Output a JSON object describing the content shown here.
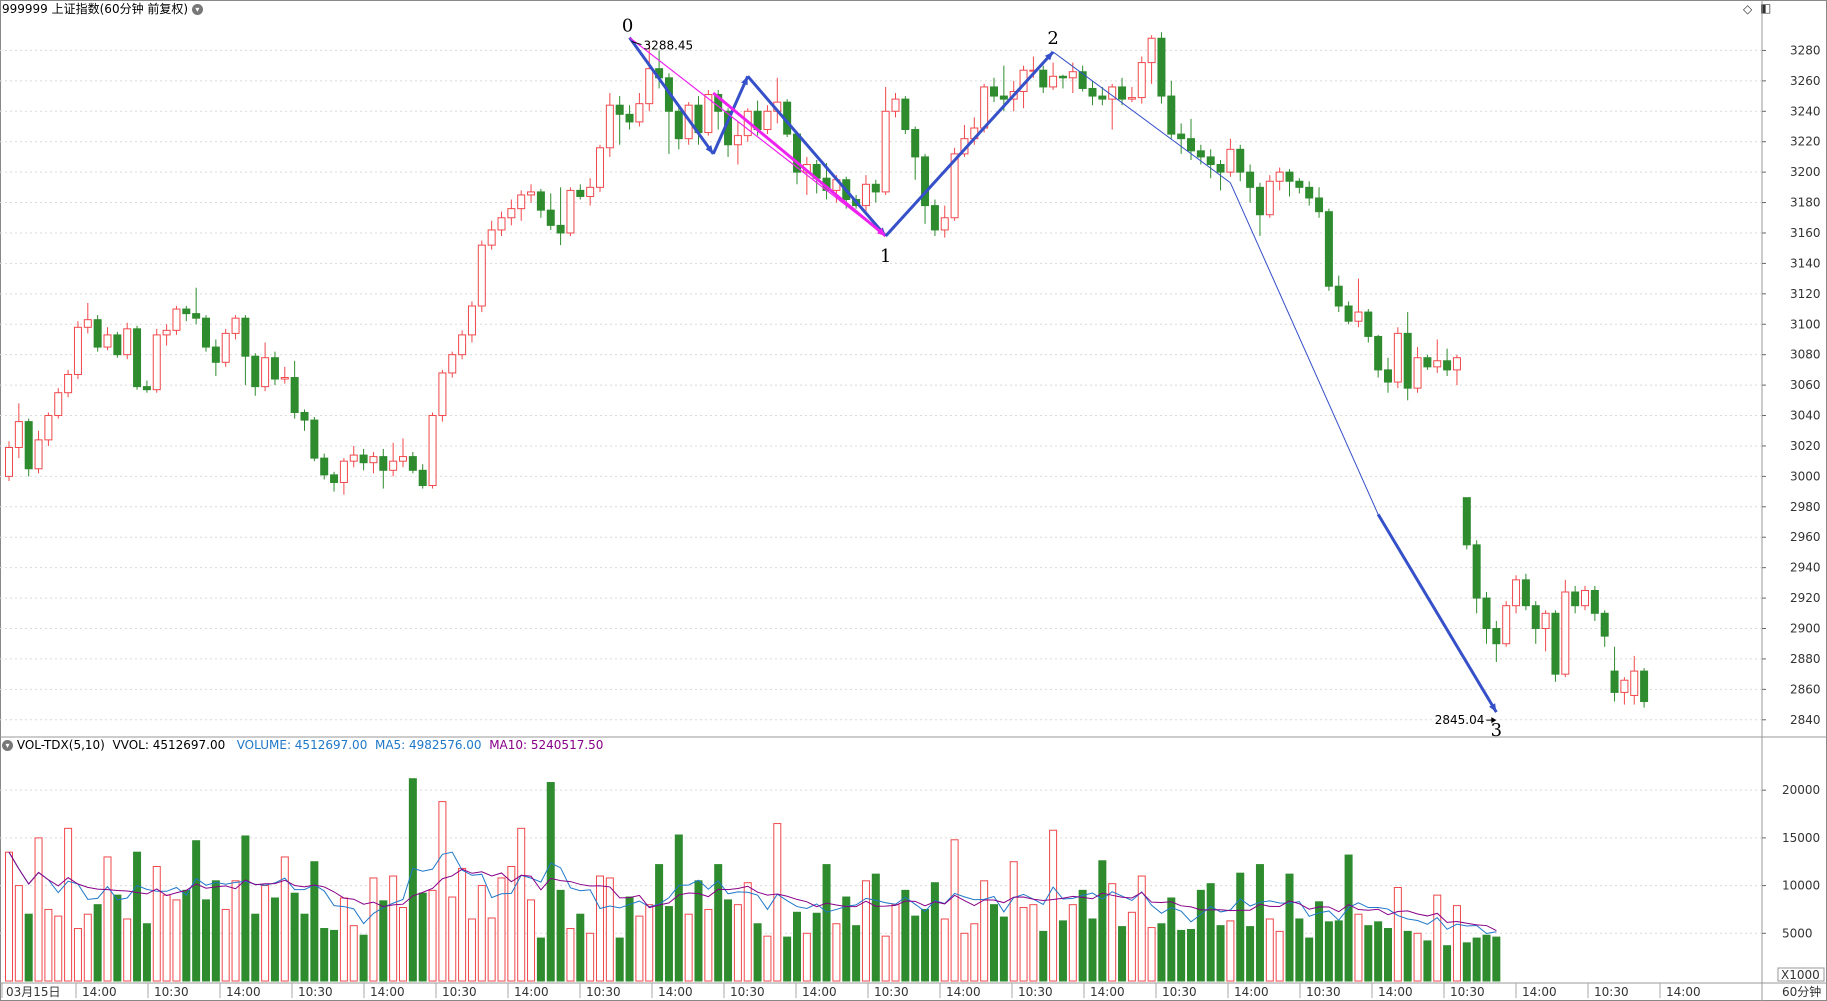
{
  "header": {
    "title": "999999 上证指数(60分钟 前复权)",
    "dropdown_icon": "chevron-down-icon",
    "tools": [
      "diamond-icon",
      "panel-icon"
    ]
  },
  "vol_header": {
    "indicator": "VOL-TDX(5,10)",
    "vvol": "VVOL: 4512697.00",
    "volume": "VOLUME: 4512697.00",
    "ma5": "MA5: 4982576.00",
    "ma10": "MA10: 5240517.50"
  },
  "colors": {
    "up": "#f0484c",
    "down": "#2e8b2e",
    "wave_blue": "#3550c8",
    "wave_magenta": "#ee22ee",
    "vol_label": "#1f78c8",
    "ma10": "#880088"
  },
  "footer": {
    "period_label": "60分钟",
    "multiplier": "X1000",
    "x_labels": [
      "03月15日",
      "14:00",
      "10:30",
      "14:00",
      "10:30",
      "14:00",
      "10:30",
      "14:00",
      "10:30",
      "14:00",
      "10:30",
      "14:00",
      "10:30",
      "14:00",
      "10:30",
      "14:00",
      "10:30",
      "14:00",
      "10:30",
      "14:00",
      "10:30",
      "14:00",
      "10:30",
      "14:00"
    ]
  },
  "chart_data": [
    {
      "type": "candlestick",
      "ylim": [
        2830,
        3300
      ],
      "yticks": [
        2840,
        2860,
        2880,
        2900,
        2920,
        2940,
        2960,
        2980,
        3000,
        3020,
        3040,
        3060,
        3080,
        3100,
        3120,
        3140,
        3160,
        3180,
        3200,
        3220,
        3240,
        3260,
        3280
      ],
      "grid": true,
      "grid_style": "dotted",
      "candles": [
        [
          3000,
          3019,
          2997,
          3023
        ],
        [
          3019,
          3036,
          3012,
          3048
        ],
        [
          3036,
          3005,
          3000,
          3038
        ],
        [
          3005,
          3024,
          3002,
          3030
        ],
        [
          3024,
          3040,
          3020,
          3042
        ],
        [
          3040,
          3055,
          3038,
          3058
        ],
        [
          3055,
          3067,
          3052,
          3070
        ],
        [
          3067,
          3098,
          3064,
          3102
        ],
        [
          3098,
          3103,
          3094,
          3114
        ],
        [
          3103,
          3085,
          3082,
          3106
        ],
        [
          3085,
          3093,
          3083,
          3098
        ],
        [
          3093,
          3080,
          3078,
          3095
        ],
        [
          3080,
          3097,
          3077,
          3101
        ],
        [
          3097,
          3059,
          3057,
          3099
        ],
        [
          3059,
          3057,
          3055,
          3063
        ],
        [
          3057,
          3093,
          3055,
          3097
        ],
        [
          3093,
          3096,
          3086,
          3100
        ],
        [
          3096,
          3110,
          3093,
          3112
        ],
        [
          3110,
          3107,
          3102,
          3112
        ],
        [
          3107,
          3104,
          3100,
          3124
        ],
        [
          3104,
          3085,
          3082,
          3106
        ],
        [
          3085,
          3075,
          3066,
          3090
        ],
        [
          3075,
          3094,
          3072,
          3097
        ],
        [
          3094,
          3104,
          3090,
          3106
        ],
        [
          3104,
          3079,
          3060,
          3106
        ],
        [
          3079,
          3059,
          3053,
          3081
        ],
        [
          3059,
          3078,
          3056,
          3088
        ],
        [
          3078,
          3064,
          3060,
          3082
        ],
        [
          3064,
          3065,
          3061,
          3072
        ],
        [
          3065,
          3042,
          3038,
          3076
        ],
        [
          3042,
          3037,
          3030,
          3044
        ],
        [
          3037,
          3012,
          3010,
          3039
        ],
        [
          3012,
          3001,
          2998,
          3015
        ],
        [
          3001,
          2996,
          2990,
          3003
        ],
        [
          2996,
          3010,
          2988,
          3012
        ],
        [
          3010,
          3014,
          3006,
          3020
        ],
        [
          3014,
          3009,
          3004,
          3018
        ],
        [
          3009,
          3013,
          3002,
          3016
        ],
        [
          3013,
          3004,
          2992,
          3018
        ],
        [
          3004,
          3010,
          3000,
          3022
        ],
        [
          3010,
          3013,
          3006,
          3025
        ],
        [
          3013,
          3004,
          3002,
          3016
        ],
        [
          3004,
          2994,
          2992,
          3008
        ],
        [
          2994,
          3040,
          2992,
          3042
        ],
        [
          3040,
          3068,
          3036,
          3070
        ],
        [
          3068,
          3080,
          3065,
          3082
        ],
        [
          3080,
          3093,
          3077,
          3096
        ],
        [
          3093,
          3112,
          3088,
          3115
        ],
        [
          3112,
          3152,
          3108,
          3155
        ],
        [
          3152,
          3162,
          3149,
          3168
        ],
        [
          3162,
          3170,
          3158,
          3174
        ],
        [
          3170,
          3176,
          3165,
          3182
        ],
        [
          3176,
          3185,
          3168,
          3188
        ],
        [
          3185,
          3187,
          3180,
          3192
        ],
        [
          3187,
          3175,
          3170,
          3189
        ],
        [
          3175,
          3165,
          3162,
          3186
        ],
        [
          3165,
          3160,
          3152,
          3190
        ],
        [
          3160,
          3188,
          3158,
          3190
        ],
        [
          3188,
          3184,
          3182,
          3192
        ],
        [
          3184,
          3190,
          3178,
          3196
        ],
        [
          3190,
          3216,
          3187,
          3218
        ],
        [
          3216,
          3244,
          3210,
          3252
        ],
        [
          3244,
          3238,
          3218,
          3250
        ],
        [
          3238,
          3233,
          3228,
          3244
        ],
        [
          3233,
          3245,
          3230,
          3252
        ],
        [
          3245,
          3268,
          3240,
          3285
        ],
        [
          3268,
          3262,
          3255,
          3280
        ],
        [
          3262,
          3240,
          3212,
          3265
        ],
        [
          3240,
          3222,
          3215,
          3243
        ],
        [
          3222,
          3244,
          3218,
          3246
        ],
        [
          3244,
          3226,
          3218,
          3250
        ],
        [
          3226,
          3251,
          3224,
          3254
        ],
        [
          3251,
          3240,
          3228,
          3254
        ],
        [
          3240,
          3218,
          3210,
          3242
        ],
        [
          3218,
          3224,
          3205,
          3233
        ],
        [
          3224,
          3240,
          3220,
          3242
        ],
        [
          3240,
          3228,
          3224,
          3247
        ],
        [
          3228,
          3240,
          3225,
          3244
        ],
        [
          3240,
          3246,
          3232,
          3262
        ],
        [
          3246,
          3225,
          3223,
          3248
        ],
        [
          3225,
          3200,
          3192,
          3226
        ],
        [
          3200,
          3205,
          3185,
          3210
        ],
        [
          3205,
          3196,
          3186,
          3208
        ],
        [
          3196,
          3188,
          3182,
          3206
        ],
        [
          3188,
          3195,
          3180,
          3198
        ],
        [
          3195,
          3182,
          3176,
          3197
        ],
        [
          3182,
          3178,
          3176,
          3185
        ],
        [
          3178,
          3192,
          3174,
          3198
        ],
        [
          3192,
          3187,
          3180,
          3195
        ],
        [
          3187,
          3240,
          3185,
          3256
        ],
        [
          3240,
          3248,
          3236,
          3252
        ],
        [
          3248,
          3228,
          3225,
          3250
        ],
        [
          3228,
          3210,
          3195,
          3230
        ],
        [
          3210,
          3178,
          3166,
          3212
        ],
        [
          3178,
          3162,
          3158,
          3182
        ],
        [
          3162,
          3170,
          3157,
          3178
        ],
        [
          3170,
          3212,
          3168,
          3216
        ],
        [
          3212,
          3222,
          3210,
          3231
        ],
        [
          3222,
          3229,
          3218,
          3236
        ],
        [
          3229,
          3256,
          3226,
          3258
        ],
        [
          3256,
          3250,
          3246,
          3262
        ],
        [
          3250,
          3248,
          3240,
          3270
        ],
        [
          3248,
          3253,
          3240,
          3260
        ],
        [
          3253,
          3267,
          3242,
          3270
        ],
        [
          3267,
          3267,
          3262,
          3276
        ],
        [
          3267,
          3256,
          3252,
          3270
        ],
        [
          3256,
          3263,
          3254,
          3272
        ],
        [
          3263,
          3262,
          3255,
          3264
        ],
        [
          3262,
          3266,
          3252,
          3272
        ],
        [
          3266,
          3255,
          3253,
          3270
        ],
        [
          3255,
          3250,
          3244,
          3260
        ],
        [
          3250,
          3248,
          3244,
          3256
        ],
        [
          3248,
          3256,
          3228,
          3258
        ],
        [
          3256,
          3248,
          3244,
          3262
        ],
        [
          3248,
          3249,
          3246,
          3256
        ],
        [
          3249,
          3272,
          3245,
          3276
        ],
        [
          3272,
          3288,
          3258,
          3290
        ],
        [
          3288,
          3250,
          3245,
          3292
        ],
        [
          3250,
          3225,
          3222,
          3260
        ],
        [
          3225,
          3222,
          3212,
          3232
        ],
        [
          3222,
          3214,
          3208,
          3235
        ],
        [
          3214,
          3210,
          3205,
          3218
        ],
        [
          3210,
          3205,
          3196,
          3215
        ],
        [
          3205,
          3200,
          3188,
          3208
        ],
        [
          3200,
          3215,
          3197,
          3222
        ],
        [
          3215,
          3200,
          3194,
          3218
        ],
        [
          3200,
          3190,
          3180,
          3205
        ],
        [
          3190,
          3172,
          3158,
          3193
        ],
        [
          3172,
          3194,
          3170,
          3198
        ],
        [
          3194,
          3200,
          3188,
          3203
        ],
        [
          3200,
          3194,
          3184,
          3202
        ],
        [
          3194,
          3190,
          3186,
          3196
        ],
        [
          3190,
          3183,
          3178,
          3194
        ],
        [
          3183,
          3174,
          3170,
          3190
        ],
        [
          3174,
          3125,
          3122,
          3176
        ],
        [
          3125,
          3112,
          3108,
          3132
        ],
        [
          3112,
          3102,
          3100,
          3115
        ],
        [
          3102,
          3108,
          3098,
          3130
        ],
        [
          3108,
          3092,
          3088,
          3110
        ],
        [
          3092,
          3070,
          3065,
          3093
        ],
        [
          3070,
          3062,
          3055,
          3078
        ],
        [
          3062,
          3094,
          3058,
          3098
        ],
        [
          3094,
          3058,
          3050,
          3108
        ],
        [
          3058,
          3078,
          3055,
          3085
        ],
        [
          3078,
          3072,
          3070,
          3080
        ],
        [
          3072,
          3076,
          3068,
          3090
        ],
        [
          3076,
          3070,
          3066,
          3084
        ],
        [
          3070,
          3078,
          3060,
          3080
        ],
        [
          2986,
          2955,
          2952,
          2986
        ],
        [
          2955,
          2920,
          2910,
          2958
        ],
        [
          2920,
          2900,
          2890,
          2924
        ],
        [
          2900,
          2890,
          2878,
          2905
        ],
        [
          2890,
          2915,
          2888,
          2918
        ],
        [
          2915,
          2932,
          2910,
          2935
        ],
        [
          2932,
          2915,
          2912,
          2936
        ],
        [
          2915,
          2900,
          2890,
          2918
        ],
        [
          2900,
          2910,
          2885,
          2912
        ],
        [
          2910,
          2870,
          2865,
          2912
        ],
        [
          2870,
          2924,
          2868,
          2932
        ],
        [
          2924,
          2915,
          2910,
          2928
        ],
        [
          2915,
          2925,
          2912,
          2928
        ],
        [
          2925,
          2910,
          2905,
          2928
        ],
        [
          2910,
          2895,
          2888,
          2912
        ],
        [
          2872,
          2858,
          2852,
          2888
        ],
        [
          2858,
          2866,
          2850,
          2868
        ],
        [
          2856,
          2872,
          2850,
          2882
        ],
        [
          2872,
          2852,
          2848,
          2874
        ]
      ],
      "wave_points": [
        {
          "label": "0",
          "value": 3288.45
        },
        {
          "label": "1",
          "value": 3158
        },
        {
          "label": "2",
          "value": 3279
        },
        {
          "label": "3",
          "value": 2845.04
        }
      ],
      "annotations": [
        "3288.45",
        "2845.04"
      ]
    },
    {
      "type": "bar",
      "title": "VOL-TDX(5,10)",
      "ylim": [
        0,
        24000
      ],
      "yticks": [
        5000,
        10000,
        15000,
        20000
      ],
      "series": [
        {
          "name": "VOLUME",
          "values": [
            13500,
            10000,
            7000,
            15000,
            7500,
            6800,
            16000,
            5500,
            7000,
            8000,
            13000,
            9000,
            6500,
            13500,
            6000,
            12000,
            9000,
            8500,
            9500,
            14700,
            8500,
            10500,
            7500,
            10500,
            15200,
            7000,
            10000,
            8700,
            13000,
            9200,
            7000,
            12500,
            5500,
            5300,
            8700,
            5800,
            4800,
            10800,
            8400,
            11000,
            7700,
            21200,
            9200,
            9500,
            18800,
            8800,
            11800,
            6500,
            10000,
            6600,
            10800,
            12000,
            16000,
            8500,
            4500,
            20800,
            9500,
            5500,
            7000,
            5000,
            11000,
            10800,
            4500,
            8800,
            6800,
            8000,
            12200,
            7800,
            15300,
            7000,
            10500,
            7500,
            12200,
            8500,
            8000,
            10300,
            6000,
            4700,
            16500,
            4600,
            7200,
            5000,
            7100,
            12200,
            6000,
            8800,
            5800,
            10500,
            11200,
            4700,
            8000,
            9500,
            6800,
            7500,
            10300,
            6500,
            14800,
            5000,
            6000,
            10500,
            8000,
            6700,
            12500,
            7700,
            8000,
            5200,
            15800,
            6300,
            8000,
            9500,
            6500,
            12600,
            10200,
            5700,
            7200,
            11000,
            5600,
            6000,
            8700,
            5300,
            5400,
            9500,
            10200,
            5800,
            6300,
            11300,
            5700,
            12200,
            6500,
            5200,
            11200,
            6500,
            4500,
            8300,
            6200,
            6300,
            13200,
            7000,
            5800,
            6200,
            5500,
            9800,
            5200,
            5000,
            4200,
            9000,
            3700,
            7900,
            4000,
            4500,
            4800,
            4600
          ]
        }
      ],
      "ma5": "MA5",
      "ma10": "MA10"
    }
  ]
}
